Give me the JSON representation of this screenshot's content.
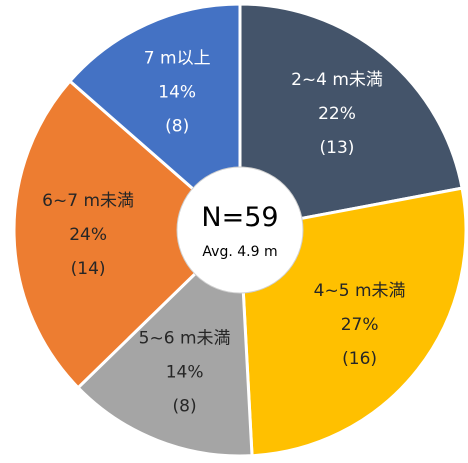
{
  "chart_data": {
    "type": "pie",
    "title": "",
    "center": {
      "line1": "N=59",
      "line2": "Avg. 4.9 m"
    },
    "slices": [
      {
        "label": "2~4 m未満",
        "percent_label": "22%",
        "count_label": "(13)",
        "value": 13,
        "color": "#44546A",
        "text_color": "#ffffff"
      },
      {
        "label": "4~5 m未満",
        "percent_label": "27%",
        "count_label": "(16)",
        "value": 16,
        "color": "#FFC000",
        "text_color": "#262626"
      },
      {
        "label": "5~6 m未満",
        "percent_label": "14%",
        "count_label": "(8)",
        "value": 8,
        "color": "#A5A5A5",
        "text_color": "#262626"
      },
      {
        "label": "6~7 m未満",
        "percent_label": "24%",
        "count_label": "(14)",
        "value": 14,
        "color": "#ED7D31",
        "text_color": "#262626"
      },
      {
        "label": "7 m以上",
        "percent_label": "14%",
        "count_label": "(8)",
        "value": 8,
        "color": "#4472C4",
        "text_color": "#ffffff"
      }
    ],
    "total": 59
  }
}
